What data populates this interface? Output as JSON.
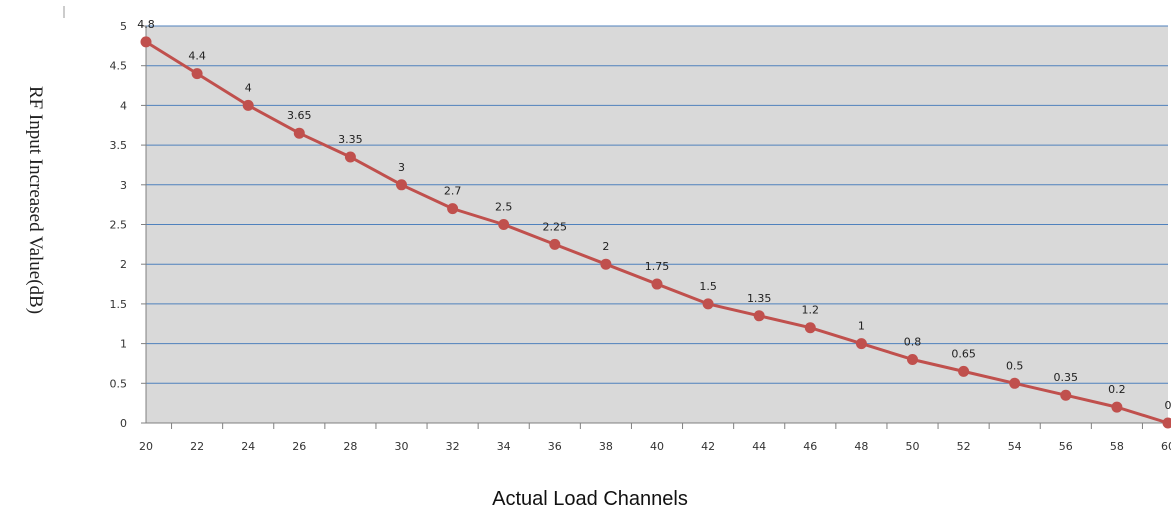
{
  "chart_data": {
    "type": "line",
    "xlabel": "Actual Load Channels",
    "ylabel": "RF Input Increased Value(dB)",
    "x": [
      20,
      22,
      24,
      26,
      28,
      30,
      32,
      34,
      36,
      38,
      40,
      42,
      44,
      46,
      48,
      50,
      52,
      54,
      56,
      58,
      60
    ],
    "series": [
      {
        "values": [
          4.8,
          4.4,
          4,
          3.65,
          3.35,
          3,
          2.7,
          2.5,
          2.25,
          2,
          1.75,
          1.5,
          1.35,
          1.2,
          1,
          0.8,
          0.65,
          0.5,
          0.35,
          0.2,
          0
        ]
      }
    ],
    "data_labels": [
      "4.8",
      "4.4",
      "4",
      "3.65",
      "3.35",
      "3",
      "2.7",
      "2.5",
      "2.25",
      "2",
      "1.75",
      "1.5",
      "1.35",
      "1.2",
      "1",
      "0.8",
      "0.65",
      "0.5",
      "0.35",
      "0.2",
      "0"
    ],
    "y_ticks": [
      "0",
      "0.5",
      "1",
      "1.5",
      "2",
      "2.5",
      "3",
      "3.5",
      "4",
      "4.5",
      "5"
    ],
    "x_ticks": [
      "20",
      "22",
      "24",
      "26",
      "28",
      "30",
      "32",
      "34",
      "36",
      "38",
      "40",
      "42",
      "44",
      "46",
      "48",
      "50",
      "52",
      "54",
      "56",
      "58",
      "60"
    ],
    "ylim": [
      0,
      5
    ],
    "xlim": [
      20,
      60
    ],
    "grid": true,
    "legend": "none",
    "colors": {
      "line": "#c0504d",
      "marker": "#c0504d",
      "plot_background": "#d9d9d9",
      "gridline": "#4f81bd",
      "axis": "#808080"
    }
  }
}
